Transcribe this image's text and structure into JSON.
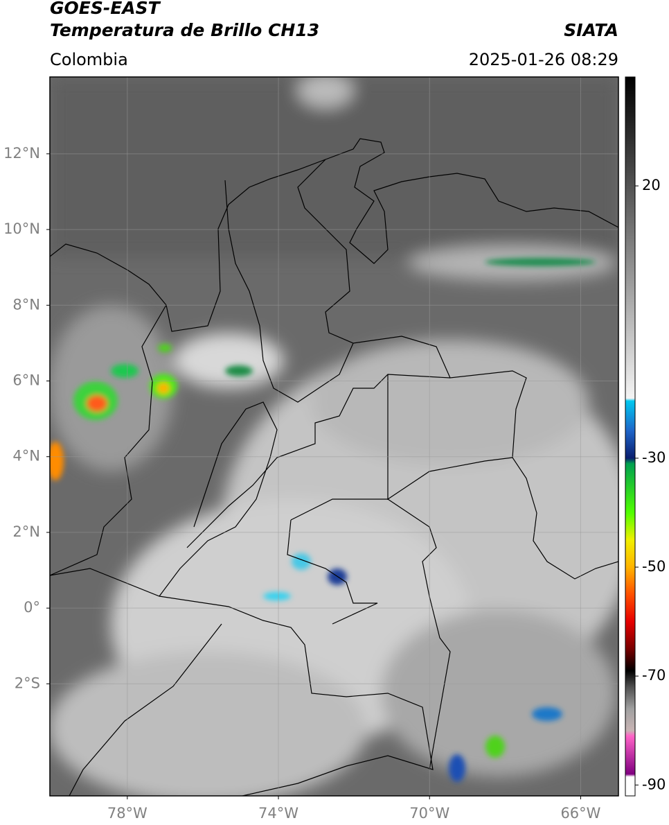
{
  "header": {
    "title": "GOES-EAST",
    "subtitle": "Temperatura de Brillo CH13",
    "source": "SIATA",
    "region": "Colombia",
    "timestamp": "2025-01-26 08:29"
  },
  "map": {
    "lon_range": [
      -80.05,
      -65
    ],
    "lat_range": [
      -4.96,
      14.03
    ],
    "grid": true,
    "lon_ticks": [
      {
        "value": -78,
        "label": "78°W"
      },
      {
        "value": -74,
        "label": "74°W"
      },
      {
        "value": -70,
        "label": "70°W"
      },
      {
        "value": -66,
        "label": "66°W"
      }
    ],
    "lat_ticks": [
      {
        "value": 12,
        "label": "12°N"
      },
      {
        "value": 10,
        "label": "10°N"
      },
      {
        "value": 8,
        "label": "8°N"
      },
      {
        "value": 6,
        "label": "6°N"
      },
      {
        "value": 4,
        "label": "4°N"
      },
      {
        "value": 2,
        "label": "2°N"
      },
      {
        "value": 0,
        "label": "0°"
      },
      {
        "value": -2,
        "label": "2°S"
      }
    ]
  },
  "colorbar": {
    "range": [
      -92,
      40
    ],
    "ticks": [
      20,
      -30,
      -50,
      -70,
      -90
    ],
    "stops": [
      {
        "value": 40,
        "color": "#000000"
      },
      {
        "value": -19,
        "color": "#f4f4f4"
      },
      {
        "value": -19.5,
        "color": "#00c8f0"
      },
      {
        "value": -25,
        "color": "#1e64c8"
      },
      {
        "value": -30,
        "color": "#0a1e6e"
      },
      {
        "value": -31,
        "color": "#00a050"
      },
      {
        "value": -40,
        "color": "#50ff00"
      },
      {
        "value": -45,
        "color": "#f0f000"
      },
      {
        "value": -50,
        "color": "#ffb400"
      },
      {
        "value": -55,
        "color": "#ff5000"
      },
      {
        "value": -60,
        "color": "#e60000"
      },
      {
        "value": -65,
        "color": "#780000"
      },
      {
        "value": -69,
        "color": "#000000"
      },
      {
        "value": -72,
        "color": "#505050"
      },
      {
        "value": -76,
        "color": "#a0a0a0"
      },
      {
        "value": -80,
        "color": "#c8b4b4"
      },
      {
        "value": -81,
        "color": "#ff64c8"
      },
      {
        "value": -88,
        "color": "#800080"
      },
      {
        "value": -88.5,
        "color": "#ffffff"
      },
      {
        "value": -92,
        "color": "#ffffff"
      }
    ]
  }
}
